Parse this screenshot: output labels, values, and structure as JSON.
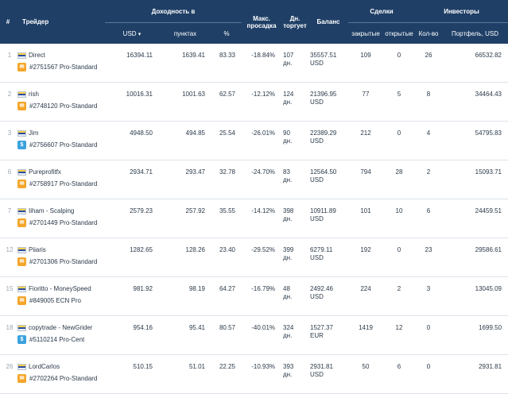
{
  "header": {
    "rank": "#",
    "trader": "Трейдер",
    "yield_group": "Доходность в",
    "usd": "USD",
    "sort_arrow": "▾",
    "points": "пунктах",
    "percent": "%",
    "max_dd": "Макс. просадка",
    "days": "Дн. торгует",
    "balance": "Баланс",
    "deals_group": "Сделки",
    "closed": "закрытые",
    "open": "открытые",
    "investors_group": "Инвесторы",
    "inv_count": "Кол-во",
    "portfolio": "Портфель, USD"
  },
  "rows": [
    {
      "rank": "1",
      "name": "Direct",
      "acct": "#2751567 Pro-Standard",
      "acct_icon": "std",
      "usd": "16394.11",
      "points": "1639.41",
      "pct": "83.33",
      "dd": "-18.84%",
      "days_n": "107",
      "days_u": "дн.",
      "bal_n": "35557.51",
      "bal_c": "USD",
      "closed": "109",
      "open": "0",
      "inv": "26",
      "portfolio": "66532.82"
    },
    {
      "rank": "2",
      "name": "rish",
      "acct": "#2748120 Pro-Standard",
      "acct_icon": "std",
      "usd": "10016.31",
      "points": "1001.63",
      "pct": "62.57",
      "dd": "-12.12%",
      "days_n": "124",
      "days_u": "дн.",
      "bal_n": "21396.95",
      "bal_c": "USD",
      "closed": "77",
      "open": "5",
      "inv": "8",
      "portfolio": "34464.43"
    },
    {
      "rank": "3",
      "name": "Jim",
      "acct": "#2756607 Pro-Standard",
      "acct_icon": "cent",
      "usd": "4948.50",
      "points": "494.85",
      "pct": "25.54",
      "dd": "-26.01%",
      "days_n": "90",
      "days_u": "дн.",
      "bal_n": "22389.29",
      "bal_c": "USD",
      "closed": "212",
      "open": "0",
      "inv": "4",
      "portfolio": "54795.83"
    },
    {
      "rank": "6",
      "name": "Pureprofitfx",
      "acct": "#2758917 Pro-Standard",
      "acct_icon": "std",
      "usd": "2934.71",
      "points": "293.47",
      "pct": "32.78",
      "dd": "-24.70%",
      "days_n": "83",
      "days_u": "дн.",
      "bal_n": "12564.50",
      "bal_c": "USD",
      "closed": "794",
      "open": "28",
      "inv": "2",
      "portfolio": "15093.71"
    },
    {
      "rank": "7",
      "name": "Iiham - Scalping",
      "acct": "#2701449 Pro-Standard",
      "acct_icon": "std",
      "usd": "2579.23",
      "points": "257.92",
      "pct": "35.55",
      "dd": "-14.12%",
      "days_n": "398",
      "days_u": "дн.",
      "bal_n": "10911.89",
      "bal_c": "USD",
      "closed": "101",
      "open": "10",
      "inv": "6",
      "portfolio": "24459.51"
    },
    {
      "rank": "12",
      "name": "Piiaris",
      "acct": "#2701306 Pro-Standard",
      "acct_icon": "std",
      "usd": "1282.65",
      "points": "128.26",
      "pct": "23.40",
      "dd": "-29.52%",
      "days_n": "399",
      "days_u": "дн.",
      "bal_n": "6279.11",
      "bal_c": "USD",
      "closed": "192",
      "open": "0",
      "inv": "23",
      "portfolio": "29586.61"
    },
    {
      "rank": "15",
      "name": "Fioritto - MoneySpeed",
      "acct": "#849005 ECN Pro",
      "acct_icon": "std",
      "usd": "981.92",
      "points": "98.19",
      "pct": "64.27",
      "dd": "-16.79%",
      "days_n": "48",
      "days_u": "дн.",
      "bal_n": "2492.46",
      "bal_c": "USD",
      "closed": "224",
      "open": "2",
      "inv": "3",
      "portfolio": "13045.09"
    },
    {
      "rank": "18",
      "name": "copytrade - NewGrider",
      "acct": "#5110214 Pro-Cent",
      "acct_icon": "cent",
      "usd": "954.16",
      "points": "95.41",
      "pct": "80.57",
      "dd": "-40.01%",
      "days_n": "324",
      "days_u": "дн.",
      "bal_n": "1527.37",
      "bal_c": "EUR",
      "closed": "1419",
      "open": "12",
      "inv": "0",
      "portfolio": "1699.50"
    },
    {
      "rank": "26",
      "name": "LordCarlos",
      "acct": "#2702264 Pro-Standard",
      "acct_icon": "std",
      "usd": "510.15",
      "points": "51.01",
      "pct": "22.25",
      "dd": "-10.93%",
      "days_n": "393",
      "days_u": "дн.",
      "bal_n": "2931.81",
      "bal_c": "USD",
      "closed": "50",
      "open": "6",
      "inv": "0",
      "portfolio": "2931.81"
    }
  ],
  "icons": {
    "std": "✉",
    "cent": "$"
  }
}
